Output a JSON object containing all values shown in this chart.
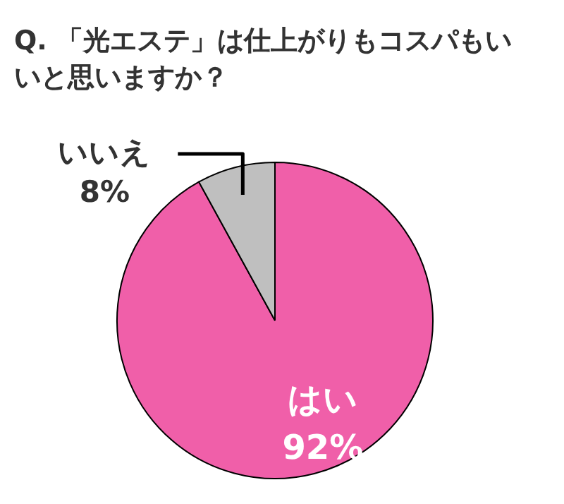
{
  "chart_data": {
    "type": "pie",
    "title": "Q. 「光エステ」は仕上がりもコスパもいいと思いますか？",
    "categories": [
      "はい",
      "いいえ"
    ],
    "values": [
      92,
      8
    ],
    "colors": [
      "#f05fa9",
      "#bfbfbf"
    ],
    "value_labels": [
      "92%",
      "8%"
    ]
  }
}
